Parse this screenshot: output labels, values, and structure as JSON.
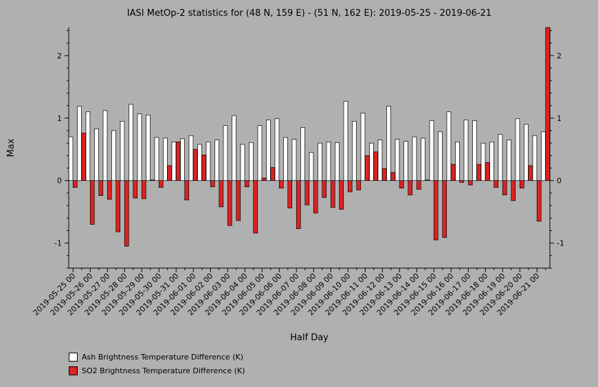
{
  "chart_data": {
    "type": "bar",
    "title": "IASI MetOp-2 statistics for (48 N, 159 E) - (51 N, 162 E): 2019-05-25 - 2019-06-21",
    "xlabel": "Half Day",
    "ylabel": "Max",
    "ylim": [
      -1.4,
      2.45
    ],
    "yticks": [
      -1,
      0,
      1,
      2
    ],
    "tick_labels": [
      "2019-05-25 00",
      "2019-05-26 00",
      "2019-05-27 00",
      "2019-05-28 00",
      "2019-05-29 00",
      "2019-05-30 00",
      "2019-05-31 00",
      "2019-06-01 00",
      "2019-06-02 00",
      "2019-06-03 00",
      "2019-06-04 00",
      "2019-06-05 00",
      "2019-06-06 00",
      "2019-06-07 00",
      "2019-06-08 00",
      "2019-06-09 00",
      "2019-06-10 00",
      "2019-06-11 00",
      "2019-06-12 00",
      "2019-06-13 00",
      "2019-06-14 00",
      "2019-06-15 00",
      "2019-06-16 00",
      "2019-06-17 00",
      "2019-06-18 00",
      "2019-06-19 00",
      "2019-06-20 00",
      "2019-06-21 00"
    ],
    "series": [
      {
        "name": "Ash Brightness Temperature Difference (K)",
        "color": "#ffffff",
        "values": [
          0.7,
          1.19,
          1.1,
          0.83,
          1.12,
          0.8,
          0.95,
          1.22,
          1.07,
          1.05,
          0.69,
          0.68,
          0.62,
          0.67,
          0.72,
          0.58,
          0.62,
          0.65,
          0.88,
          1.04,
          0.58,
          0.61,
          0.88,
          0.97,
          0.99,
          0.69,
          0.66,
          0.85,
          0.45,
          0.6,
          0.62,
          0.61,
          1.27,
          0.95,
          1.08,
          0.6,
          0.65,
          1.19,
          0.66,
          0.63,
          0.7,
          0.68,
          0.96,
          0.78,
          1.1,
          0.62,
          0.97,
          0.96,
          0.6,
          0.62,
          0.74,
          0.65,
          0.99,
          0.9,
          0.72,
          0.78
        ]
      },
      {
        "name": "SO2 Brightness Temperature Difference (K)",
        "color": "#dd2222",
        "values": [
          -0.11,
          0.76,
          -0.7,
          -0.24,
          -0.3,
          -0.82,
          -1.05,
          -0.28,
          -0.29,
          0.01,
          -0.11,
          0.24,
          0.62,
          -0.31,
          0.5,
          0.41,
          -0.1,
          -0.42,
          -0.72,
          -0.64,
          -0.1,
          -0.84,
          0.04,
          0.21,
          -0.12,
          -0.44,
          -0.77,
          -0.39,
          -0.52,
          -0.27,
          -0.43,
          -0.46,
          -0.18,
          -0.15,
          0.4,
          0.46,
          0.19,
          0.13,
          -0.12,
          -0.23,
          -0.14,
          0.01,
          -0.95,
          -0.91,
          0.26,
          -0.03,
          -0.07,
          0.26,
          0.29,
          -0.11,
          -0.23,
          -0.32,
          -0.12,
          0.24,
          -0.65,
          2.5
        ]
      }
    ],
    "legend_position": "bottom-left",
    "grid": false
  }
}
